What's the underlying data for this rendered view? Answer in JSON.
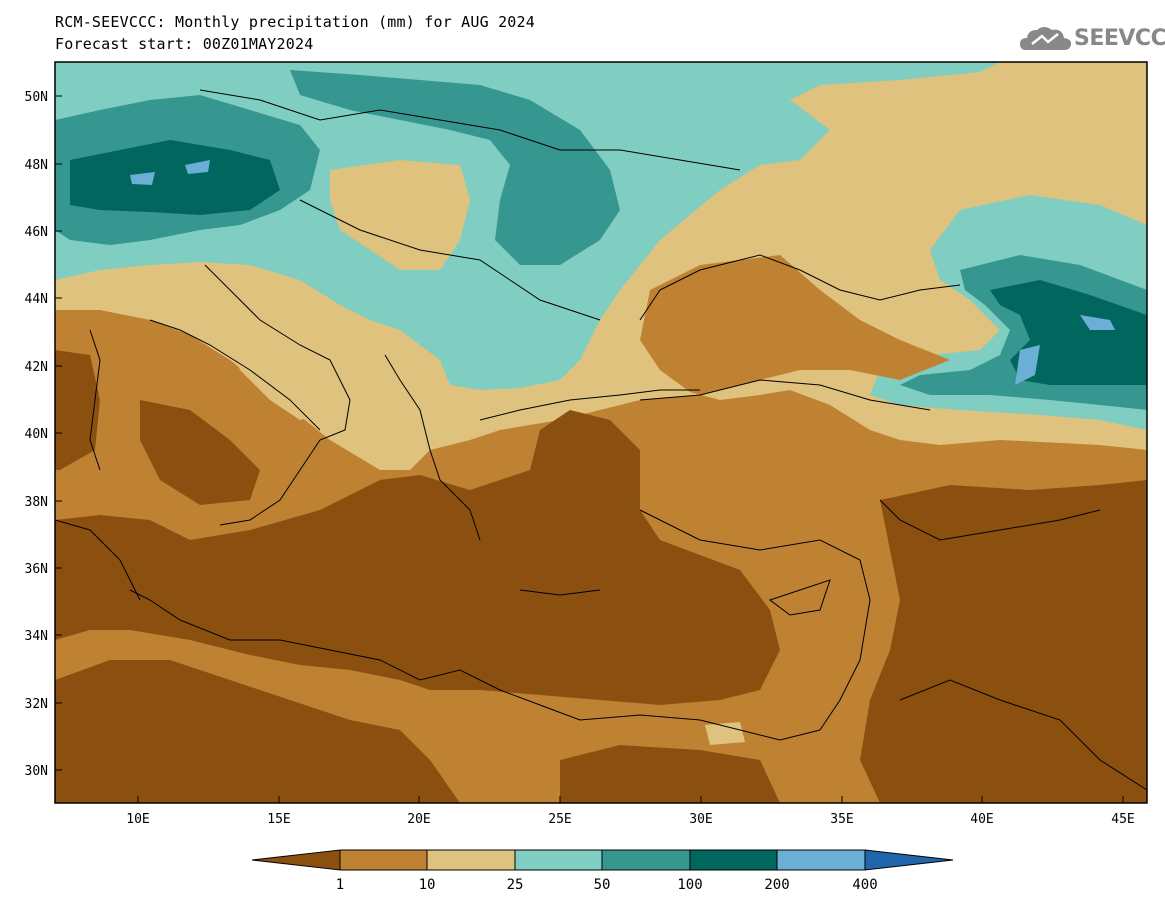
{
  "header": {
    "title_line1": "RCM-SEEVCCC: Monthly precipitation (mm) for AUG 2024",
    "title_line2": "Forecast start: 00Z01MAY2024"
  },
  "logo": {
    "text": "SEEVCCC",
    "icon": "cloud-icon"
  },
  "map": {
    "lat_ticks": [
      "50N",
      "48N",
      "46N",
      "44N",
      "42N",
      "40N",
      "38N",
      "36N",
      "34N",
      "32N",
      "30N"
    ],
    "lon_ticks": [
      "10E",
      "15E",
      "20E",
      "25E",
      "30E",
      "35E",
      "40E",
      "45E"
    ]
  },
  "colorbar": {
    "labels": [
      "1",
      "10",
      "25",
      "50",
      "100",
      "200",
      "400"
    ],
    "colors": {
      "lt1": "#8b5010",
      "c1_10": "#bf8232",
      "c10_25": "#dfc27d",
      "c25_50": "#80cdc1",
      "c50_100": "#35978f",
      "c100_200": "#01665e",
      "c200_400": "#6baed6",
      "gt400": "#2166ac"
    }
  }
}
